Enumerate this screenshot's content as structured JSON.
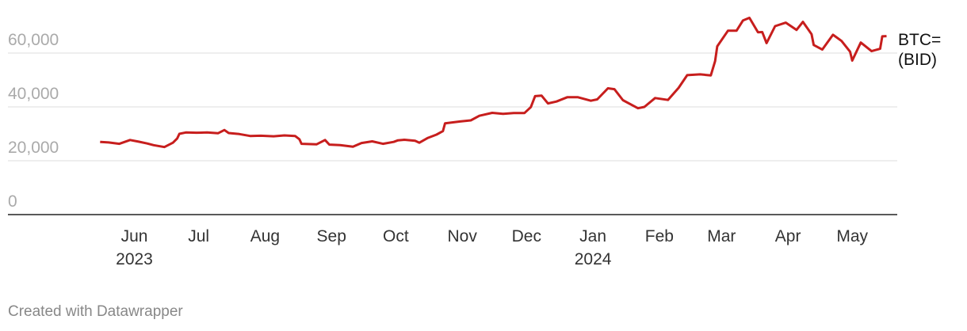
{
  "chart_data": {
    "type": "line",
    "xlim": [
      -59,
      356
    ],
    "ylim": [
      0,
      75000
    ],
    "xticks": [
      {
        "value": 0,
        "label": "Jun"
      },
      {
        "value": 30,
        "label": "Jul"
      },
      {
        "value": 61,
        "label": "Aug"
      },
      {
        "value": 92,
        "label": "Sep"
      },
      {
        "value": 122,
        "label": "Oct"
      },
      {
        "value": 153,
        "label": "Nov"
      },
      {
        "value": 183,
        "label": "Dec"
      },
      {
        "value": 214,
        "label": "Jan"
      },
      {
        "value": 245,
        "label": "Feb"
      },
      {
        "value": 274,
        "label": "Mar"
      },
      {
        "value": 305,
        "label": "Apr"
      },
      {
        "value": 335,
        "label": "May"
      }
    ],
    "x_year_labels": [
      {
        "value": 0,
        "label": "2023"
      },
      {
        "value": 214,
        "label": "2024"
      }
    ],
    "yticks": [
      0,
      {
        "value": 20000,
        "label": "20,000"
      },
      {
        "value": 40000,
        "label": "40,000"
      },
      {
        "value": 60000,
        "label": "60,000"
      }
    ],
    "grid": true,
    "x": [
      -16,
      -12,
      -7,
      -2,
      2,
      6,
      9,
      14,
      18,
      20,
      21,
      24,
      29,
      34,
      39,
      42,
      44,
      49,
      54,
      59,
      65,
      70,
      75,
      77,
      78,
      85,
      89,
      91,
      96,
      102,
      106,
      111,
      116,
      121,
      123,
      126,
      131,
      133,
      137,
      141,
      144,
      145,
      152,
      157,
      161,
      167,
      172,
      177,
      182,
      185,
      187,
      190,
      193,
      197,
      202,
      207,
      213,
      216,
      221,
      224,
      228,
      235,
      238,
      243,
      249,
      252,
      254,
      258,
      264,
      269,
      271,
      272,
      277,
      281,
      284,
      287,
      291,
      293,
      295,
      299,
      304,
      309,
      312,
      316,
      317,
      321,
      326,
      330,
      334,
      335,
      339,
      344,
      348,
      349,
      351
    ],
    "series": [
      {
        "name": "BTC= (BID)",
        "color": "#c71e1d",
        "values": [
          27000,
          26800,
          26300,
          27700,
          27100,
          26400,
          25800,
          25100,
          26700,
          28300,
          30000,
          30500,
          30400,
          30500,
          30200,
          31400,
          30300,
          29900,
          29200,
          29300,
          29100,
          29400,
          29200,
          28000,
          26300,
          26100,
          27700,
          26000,
          25800,
          25200,
          26600,
          27200,
          26300,
          27000,
          27600,
          27800,
          27400,
          26700,
          28500,
          29700,
          31000,
          33900,
          34600,
          35000,
          36700,
          37800,
          37400,
          37700,
          37700,
          39900,
          44000,
          44200,
          41300,
          42000,
          43600,
          43600,
          42300,
          42800,
          46900,
          46600,
          42500,
          39500,
          40000,
          43300,
          42600,
          45300,
          47100,
          51800,
          52100,
          51700,
          57000,
          62500,
          68300,
          68300,
          72100,
          73100,
          67700,
          67800,
          63700,
          70000,
          71300,
          68600,
          71600,
          67000,
          63000,
          61300,
          66800,
          64500,
          60500,
          57200,
          63900,
          60700,
          61600,
          66200,
          66300
        ]
      }
    ],
    "credit": "Created with Datawrapper"
  }
}
